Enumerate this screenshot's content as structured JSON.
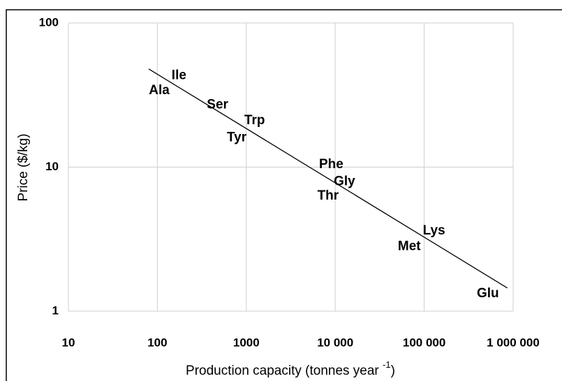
{
  "chart_data": {
    "type": "scatter",
    "x_label": {
      "text": "Production capacity (tonnes year",
      "superscript": "-1",
      "close": ")"
    },
    "y_label": "Price ($/kg)",
    "log_x": true,
    "log_y": true,
    "grid": true,
    "xlim": [
      10,
      1000000
    ],
    "xticks": [
      10,
      100,
      1000,
      {
        "value": 10000,
        "label": "10 000"
      },
      {
        "value": 100000,
        "label": "100 000"
      },
      {
        "value": 1000000,
        "label": "1 000 000"
      }
    ],
    "ylim": [
      1,
      100
    ],
    "yticks": [
      1,
      10,
      100
    ],
    "points": [
      {
        "label": "Ile",
        "x": 175,
        "y": 43
      },
      {
        "label": "Ala",
        "x": 105,
        "y": 34
      },
      {
        "label": "Ser",
        "x": 475,
        "y": 27
      },
      {
        "label": "Trp",
        "x": 1240,
        "y": 21
      },
      {
        "label": "Tyr",
        "x": 780,
        "y": 16
      },
      {
        "label": "Phe",
        "x": 9000,
        "y": 10.4
      },
      {
        "label": "Gly",
        "x": 12700,
        "y": 7.9
      },
      {
        "label": "Thr",
        "x": 8300,
        "y": 6.3
      },
      {
        "label": "Lys",
        "x": 129000,
        "y": 3.6
      },
      {
        "label": "Met",
        "x": 68000,
        "y": 2.8
      },
      {
        "label": "Glu",
        "x": 520000,
        "y": 1.32
      }
    ],
    "trendline": {
      "x": [
        80,
        860000
      ],
      "y": [
        48,
        1.45
      ],
      "color": "#000000"
    }
  }
}
